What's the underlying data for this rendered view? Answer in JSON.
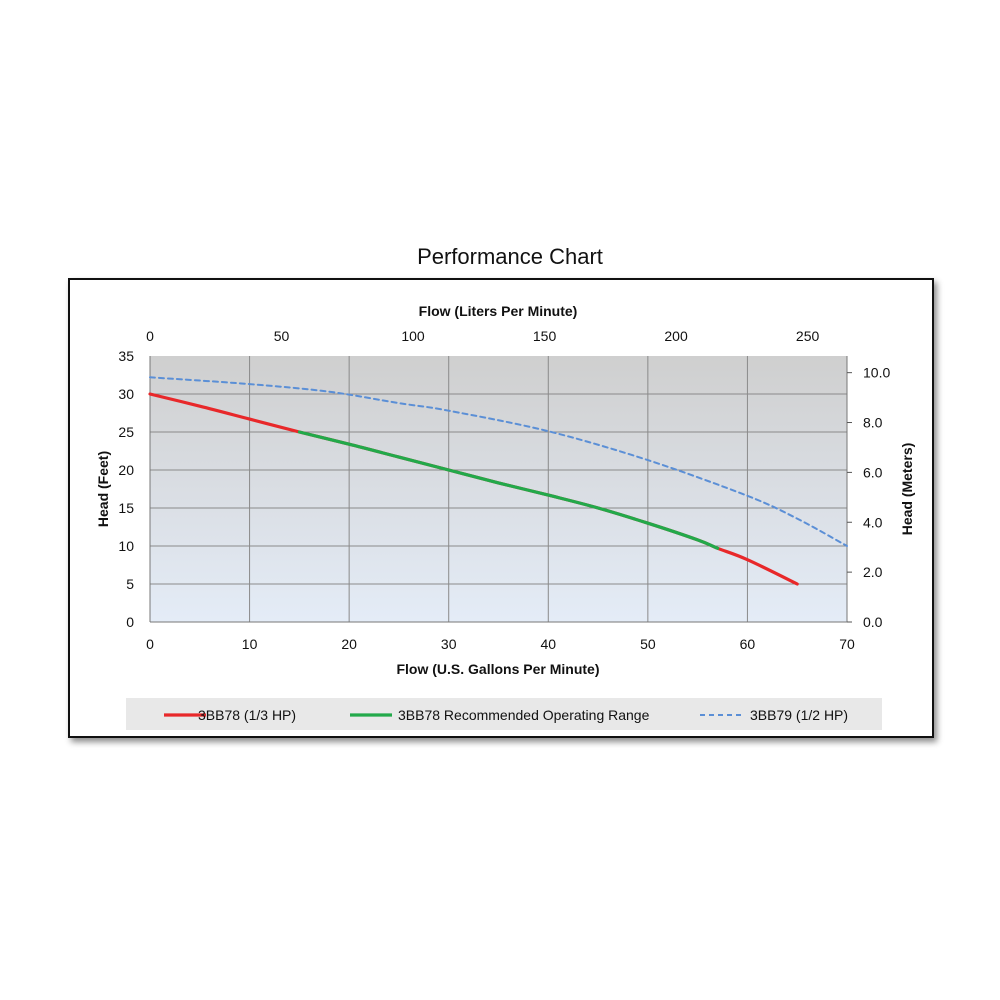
{
  "chart_data": {
    "type": "line",
    "title": "Performance Chart",
    "xlabel": "Flow (U.S. Gallons Per Minute)",
    "x2label": "Flow (Liters Per Minute)",
    "ylabel": "Head (Feet)",
    "y2label": "Head (Meters)",
    "xlim": [
      0,
      70
    ],
    "ylim": [
      0,
      35
    ],
    "x_ticks": [
      0,
      10,
      20,
      30,
      40,
      50,
      60,
      70
    ],
    "y_ticks": [
      0,
      5,
      10,
      15,
      20,
      25,
      30,
      35
    ],
    "x2_ticks": [
      0,
      50,
      100,
      150,
      200,
      250
    ],
    "y2_ticks": [
      "0.0",
      "2.0",
      "4.0",
      "6.0",
      "8.0",
      "10.0"
    ],
    "grid": true,
    "legend_position": "bottom",
    "series": [
      {
        "name": "3BB78 (1/3 HP)",
        "color": "#e8282a",
        "style": "solid",
        "x": [
          0,
          5,
          10,
          15,
          20,
          25,
          30,
          35,
          40,
          45,
          50,
          55,
          57,
          60,
          65
        ],
        "y": [
          30,
          28.4,
          26.7,
          25,
          23.4,
          21.7,
          20,
          18.3,
          16.7,
          15,
          13,
          10.8,
          9.7,
          8.2,
          5
        ]
      },
      {
        "name": "3BB78 Recommended Operating Range",
        "color": "#22a94a",
        "style": "solid",
        "x": [
          15,
          20,
          25,
          30,
          35,
          40,
          45,
          50,
          55,
          57
        ],
        "y": [
          25,
          23.4,
          21.7,
          20,
          18.3,
          16.7,
          15,
          13,
          10.8,
          9.7
        ]
      },
      {
        "name": "3BB79 (1/2 HP)",
        "color": "#5b8fd6",
        "style": "dashed",
        "x": [
          0,
          10,
          18,
          25,
          30,
          40,
          50,
          60,
          65,
          70
        ],
        "y": [
          32.2,
          31.3,
          30.3,
          28.8,
          27.8,
          25.1,
          21.3,
          16.6,
          13.6,
          10
        ]
      }
    ]
  }
}
